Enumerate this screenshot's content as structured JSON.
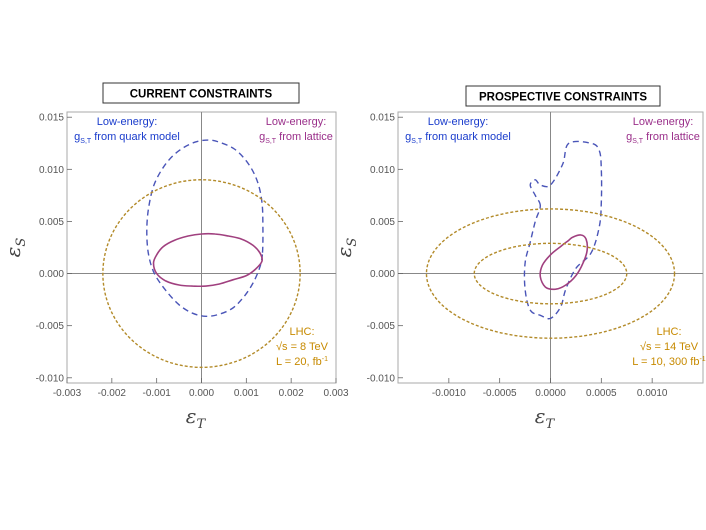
{
  "colors": {
    "quark_model": "#4a55b8",
    "lattice": "#a0407f",
    "lhc": "#b38b2a",
    "lhc_text": "#c78a00",
    "quark_text": "#1a3ccc",
    "lattice_text": "#9a2f8a",
    "axis": "#888888",
    "frame": "#aaaaaa"
  },
  "chart_data": [
    {
      "type": "line",
      "title": "CURRENT CONSTRAINTS",
      "xlabel": "ε",
      "xlabel_sub": "T",
      "ylabel": "ε",
      "ylabel_sub": "S",
      "xlim": [
        -0.003,
        0.003
      ],
      "ylim": [
        -0.0105,
        0.0155
      ],
      "x_ticks": [
        -0.003,
        -0.002,
        -0.001,
        0.0,
        0.001,
        0.002,
        0.003
      ],
      "x_tick_labels": [
        "-0.003",
        "-0.002",
        "-0.001",
        "0.000",
        "0.001",
        "0.002",
        "0.003"
      ],
      "y_ticks": [
        -0.01,
        -0.005,
        0.0,
        0.005,
        0.01,
        0.015
      ],
      "y_tick_labels": [
        "-0.010",
        "-0.005",
        "0.000",
        "0.005",
        "0.010",
        "0.015"
      ],
      "annotations": {
        "low_energy_quark": [
          "Low-energy:",
          "g",
          "S,T",
          " from quark model"
        ],
        "low_energy_lattice": [
          "Low-energy:",
          "g",
          "S,T",
          " from lattice"
        ],
        "lhc": [
          "LHC:",
          "√s = 8 TeV",
          "L = 20, fb",
          "-1"
        ]
      },
      "series": [
        {
          "name": "Low-energy: gS,T from quark model",
          "style": "dashed",
          "x": [
            0.00136,
            0.00137,
            0.00135,
            0.00125,
            0.00105,
            0.00075,
            0.0004,
            0.00015,
            -0.00015,
            -0.0005,
            -0.0008,
            -0.00105,
            -0.00118,
            -0.00122,
            -0.00118,
            -0.00105,
            -0.0008,
            -0.0005,
            -0.0002,
            0.0001,
            0.0004,
            0.0007,
            0.00095,
            0.00115,
            0.0013,
            0.00136
          ],
          "y": [
            0.002,
            0.0045,
            0.0068,
            0.0088,
            0.0105,
            0.0119,
            0.0126,
            0.0128,
            0.0126,
            0.0118,
            0.0105,
            0.0086,
            0.0063,
            0.004,
            0.0018,
            0.0,
            -0.0016,
            -0.003,
            -0.0038,
            -0.0041,
            -0.0039,
            -0.0033,
            -0.0022,
            -0.0009,
            0.0006,
            0.002
          ]
        },
        {
          "name": "Low-energy: gS,T from lattice",
          "style": "solid",
          "x": [
            0.00135,
            0.0013,
            0.00115,
            0.0009,
            0.0006,
            0.0003,
            0.0,
            -0.0003,
            -0.0006,
            -0.00085,
            -0.001,
            -0.00107,
            -0.001,
            -0.0008,
            -0.0005,
            -0.0002,
            0.0001,
            0.0004,
            0.0007,
            0.001,
            0.0012,
            0.00135
          ],
          "y": [
            0.0012,
            0.002,
            0.0027,
            0.0033,
            0.0036,
            0.0038,
            0.0038,
            0.0036,
            0.0032,
            0.0026,
            0.0018,
            0.001,
            0.0,
            -0.0007,
            -0.0011,
            -0.0012,
            -0.0012,
            -0.001,
            -0.0006,
            -0.0002,
            0.0004,
            0.0012
          ]
        },
        {
          "name": "LHC: √s = 8 TeV, L = 20 fb-1",
          "style": "dotted",
          "ellipse": {
            "cx": 0.0,
            "cy": 0.0,
            "rx": 0.0022,
            "ry": 0.009
          }
        }
      ]
    },
    {
      "type": "line",
      "title": "PROSPECTIVE CONSTRAINTS",
      "xlabel": "ε",
      "xlabel_sub": "T",
      "ylabel": "ε",
      "ylabel_sub": "S",
      "xlim": [
        -0.0015,
        0.0015
      ],
      "ylim": [
        -0.0105,
        0.0155
      ],
      "x_ticks": [
        -0.001,
        -0.0005,
        0.0,
        0.0005,
        0.001
      ],
      "x_tick_labels": [
        "-0.0010",
        "-0.0005",
        "0.0000",
        "0.0005",
        "0.0010"
      ],
      "y_ticks": [
        -0.01,
        -0.005,
        0.0,
        0.005,
        0.01,
        0.015
      ],
      "y_tick_labels": [
        "-0.010",
        "-0.005",
        "0.000",
        "0.005",
        "0.010",
        "0.015"
      ],
      "annotations": {
        "low_energy_quark": [
          "Low-energy:",
          "g",
          "S,T",
          " from quark model"
        ],
        "low_energy_lattice": [
          "Low-energy:",
          "g",
          "S,T",
          " from lattice"
        ],
        "lhc": [
          "LHC:",
          "√s = 14 TeV",
          "L = 10, 300 fb",
          "-1"
        ]
      },
      "series": [
        {
          "name": "Low-energy: gS,T from quark model",
          "style": "dashed",
          "x": [
            -0.0001,
            -0.00015,
            -0.0002,
            -0.00015,
            -0.0001,
            0.0,
            0.00012,
            0.00018,
            0.0004,
            0.00048,
            0.0005,
            0.0005,
            0.00048,
            0.0004,
            0.00025,
            0.00015,
            0.0001,
            0.0,
            -0.0001,
            -0.0002,
            -0.00025,
            -0.00025,
            -0.0002,
            -0.00015,
            -0.0001
          ],
          "y": [
            0.0065,
            0.0075,
            0.0085,
            0.009,
            0.0085,
            0.0085,
            0.0105,
            0.0125,
            0.0125,
            0.0118,
            0.01,
            0.0068,
            0.0045,
            0.002,
            0.0005,
            -0.0015,
            -0.0032,
            -0.0043,
            -0.004,
            -0.0035,
            -0.0015,
            0.001,
            0.003,
            0.005,
            0.0065
          ]
        },
        {
          "name": "Low-energy: gS,T from lattice",
          "style": "solid",
          "x": [
            0.00022,
            0.0003,
            0.00035,
            0.00036,
            0.00032,
            0.00025,
            0.00015,
            5e-05,
            -5e-05,
            -0.0001,
            -8e-05,
            0.0,
            0.0001,
            0.00018,
            0.00022
          ],
          "y": [
            0.0035,
            0.0037,
            0.0033,
            0.0022,
            0.001,
            -0.0002,
            -0.0011,
            -0.0015,
            -0.0013,
            -0.0003,
            0.0008,
            0.0018,
            0.0026,
            0.0032,
            0.0035
          ]
        },
        {
          "name": "LHC: √s = 14 TeV, L = 10 fb-1",
          "style": "dotted",
          "ellipse": {
            "cx": 0.0,
            "cy": 0.0,
            "rx": 0.00122,
            "ry": 0.0062
          }
        },
        {
          "name": "LHC: √s = 14 TeV, L = 300 fb-1",
          "style": "dotted",
          "ellipse": {
            "cx": 0.0,
            "cy": 0.0,
            "rx": 0.00075,
            "ry": 0.0029
          }
        }
      ]
    }
  ]
}
